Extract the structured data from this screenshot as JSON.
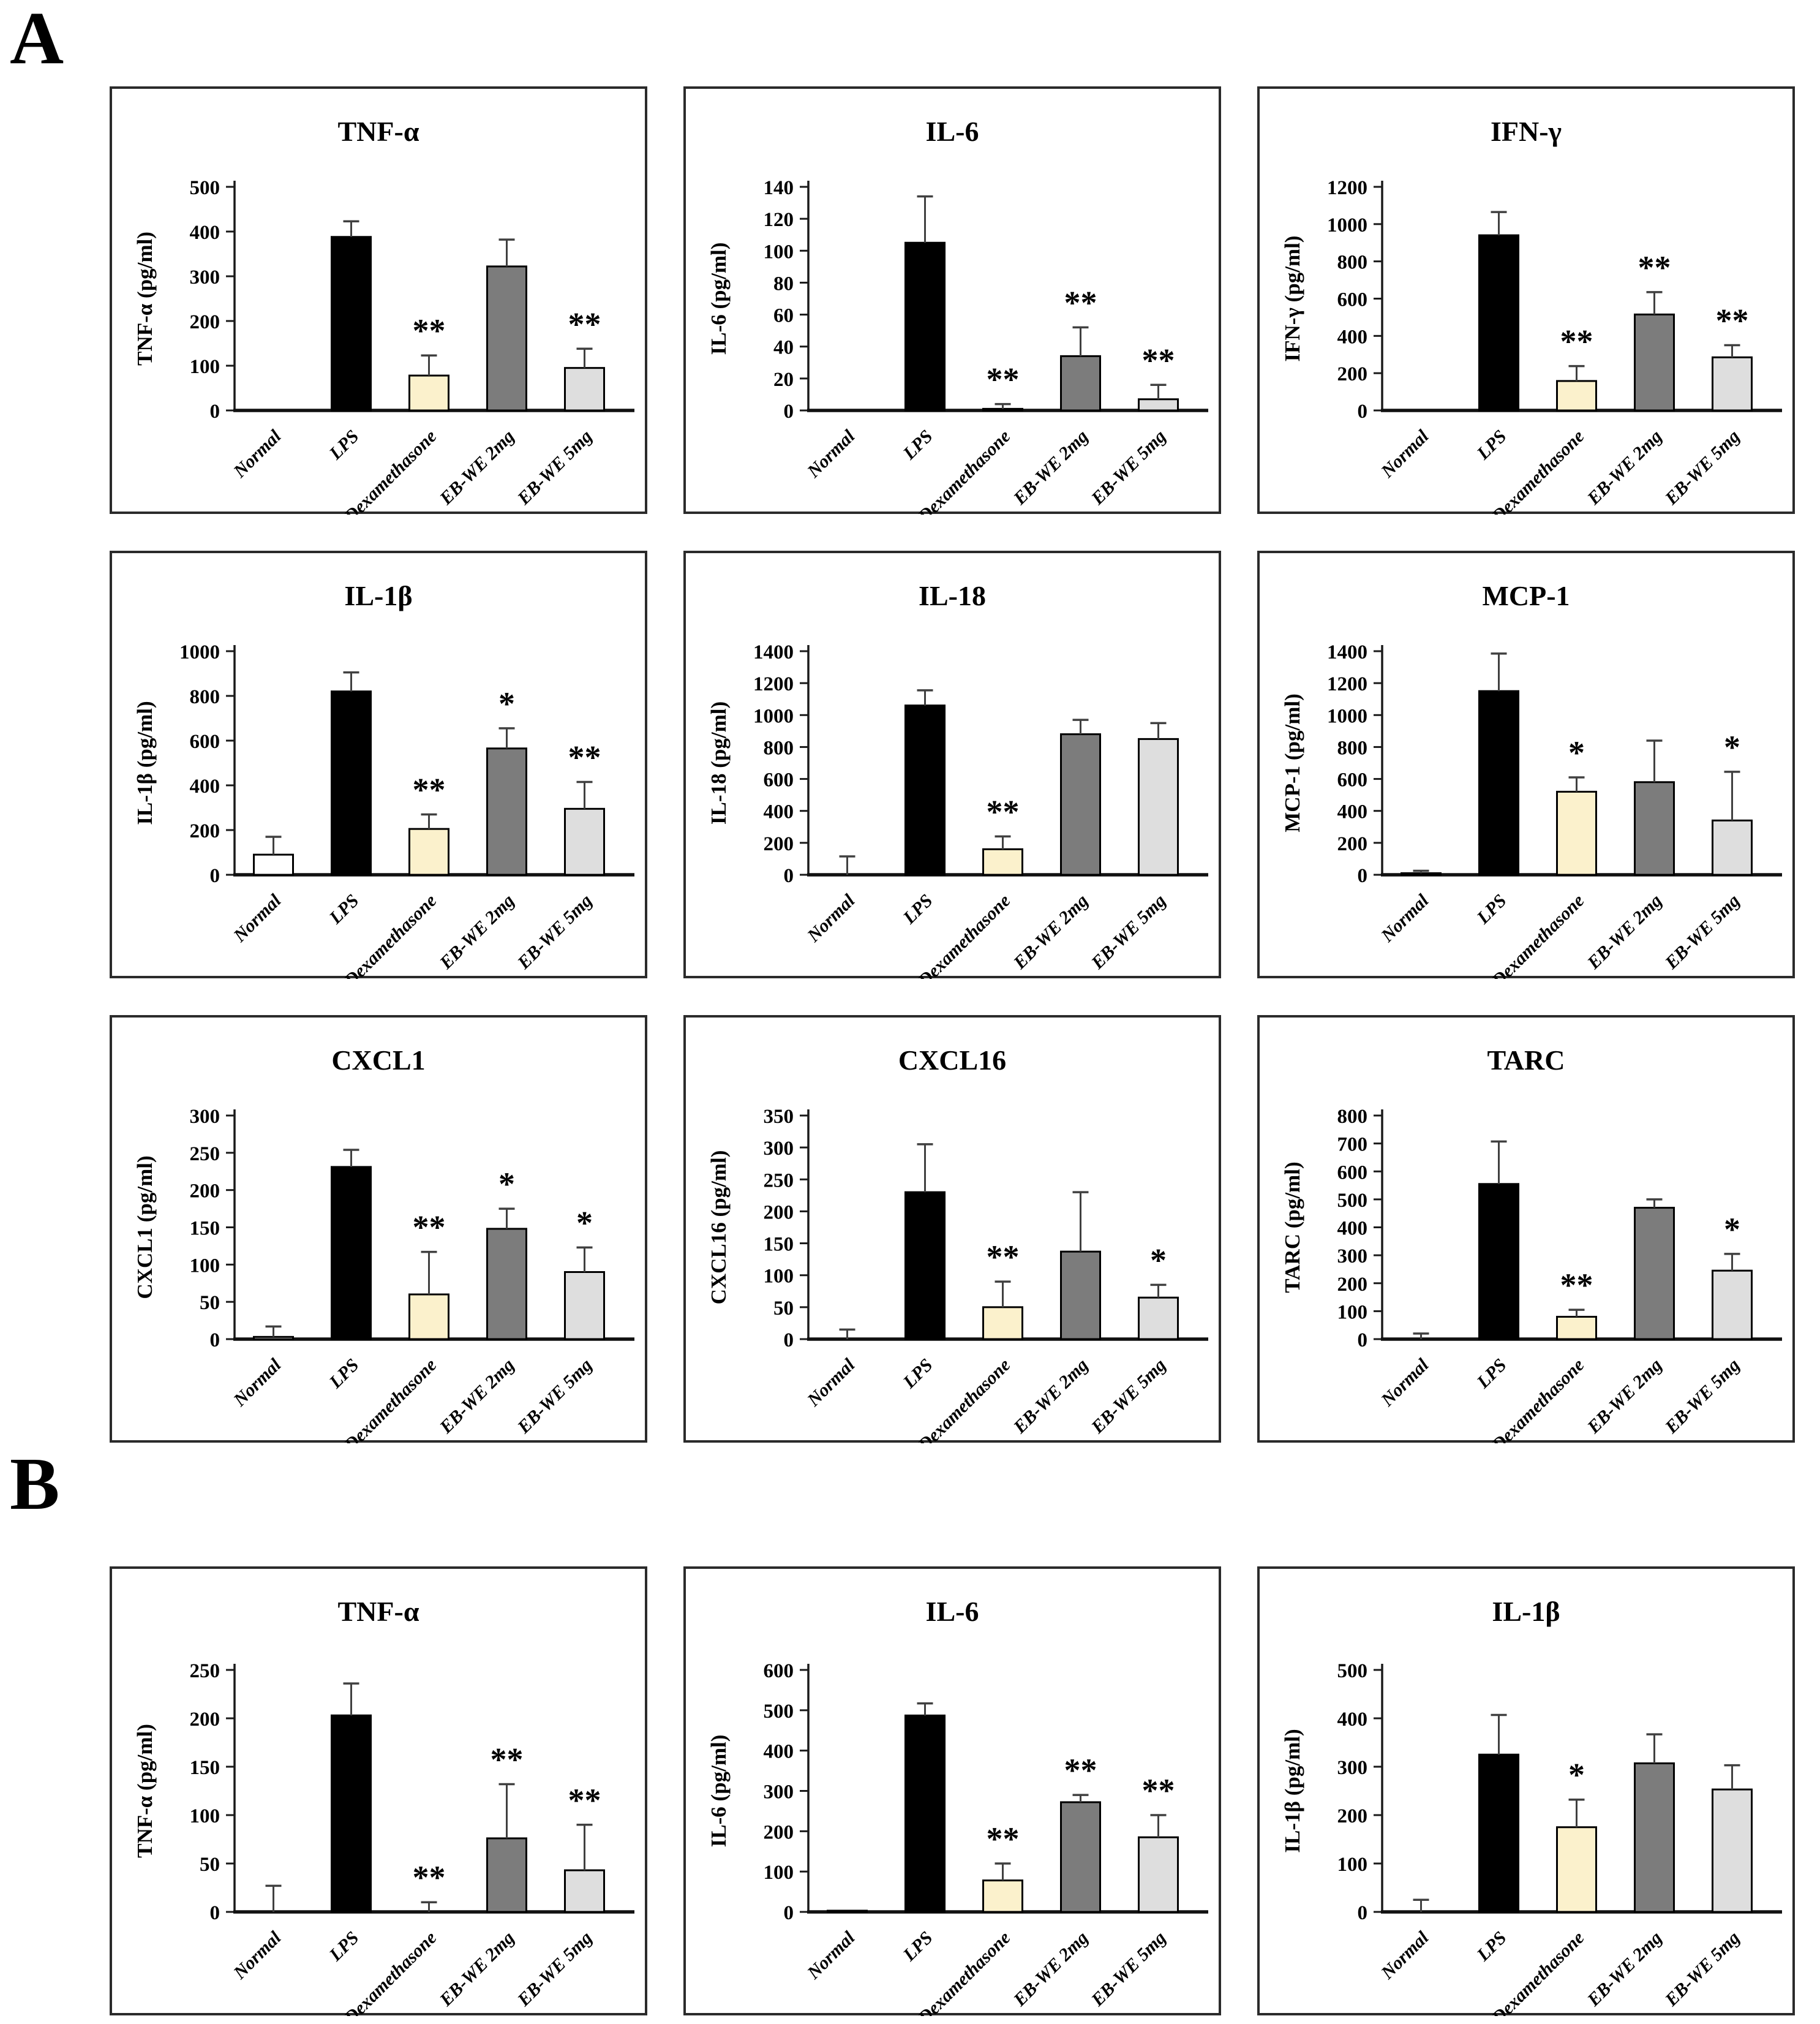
{
  "figure": {
    "section_a_label": "A",
    "section_b_label": "B"
  },
  "categories": [
    "Normal",
    "LPS",
    "Dexamethasone",
    "EB-WE 2mg",
    "EB-WE 5mg"
  ],
  "bar_colors": [
    "#FFFFFF",
    "#000000",
    "#FBF1CC",
    "#7C7C7C",
    "#DEDEDE"
  ],
  "error_bar_color": "#404040",
  "axis_color": "#1a1a1a",
  "panel_border_color": "#2b2b2b",
  "chart_data": [
    {
      "id": "a-tnf-alpha",
      "section": "A",
      "type": "bar",
      "title": "TNF-α",
      "ylabel": "TNF-α (pg/ml)",
      "ylim": [
        0,
        500
      ],
      "ystep": 100,
      "categories": [
        "Normal",
        "LPS",
        "Dexamethasone",
        "EB-WE 2mg",
        "EB-WE 5mg"
      ],
      "values": [
        0,
        388,
        78,
        322,
        95
      ],
      "errors_plus": [
        0,
        35,
        45,
        60,
        43
      ],
      "significance": [
        "",
        "",
        "**",
        "",
        "**"
      ]
    },
    {
      "id": "a-il6",
      "section": "A",
      "type": "bar",
      "title": "IL-6",
      "ylabel": "IL-6  (pg/ml)",
      "ylim": [
        0,
        140
      ],
      "ystep": 20,
      "categories": [
        "Normal",
        "LPS",
        "Dexamethasone",
        "EB-WE 2mg",
        "EB-WE 5mg"
      ],
      "values": [
        0,
        105,
        1,
        34,
        7
      ],
      "errors_plus": [
        0,
        29,
        3,
        18,
        9
      ],
      "significance": [
        "",
        "",
        "**",
        "**",
        "**"
      ]
    },
    {
      "id": "a-ifn-gamma",
      "section": "A",
      "type": "bar",
      "title": "IFN-γ",
      "ylabel": "IFN-γ (pg/ml)",
      "ylim": [
        0,
        1200
      ],
      "ystep": 200,
      "categories": [
        "Normal",
        "LPS",
        "Dexamethasone",
        "EB-WE 2mg",
        "EB-WE 5mg"
      ],
      "values": [
        0,
        940,
        158,
        515,
        285
      ],
      "errors_plus": [
        0,
        125,
        80,
        120,
        65
      ],
      "significance": [
        "",
        "",
        "**",
        "**",
        "**"
      ]
    },
    {
      "id": "a-il1-beta",
      "section": "A",
      "type": "bar",
      "title": "IL-1β",
      "ylabel": "IL-1β  (pg/ml)",
      "ylim": [
        0,
        1000
      ],
      "ystep": 200,
      "categories": [
        "Normal",
        "LPS",
        "Dexamethasone",
        "EB-WE 2mg",
        "EB-WE 5mg"
      ],
      "values": [
        90,
        820,
        205,
        565,
        295
      ],
      "errors_plus": [
        80,
        85,
        65,
        90,
        120
      ],
      "significance": [
        "",
        "",
        "**",
        "*",
        "**"
      ]
    },
    {
      "id": "a-il18",
      "section": "A",
      "type": "bar",
      "title": "IL-18",
      "ylabel": "IL-18  (pg/ml)",
      "ylim": [
        0,
        1400
      ],
      "ystep": 200,
      "categories": [
        "Normal",
        "LPS",
        "Dexamethasone",
        "EB-WE 2mg",
        "EB-WE 5mg"
      ],
      "values": [
        0,
        1060,
        160,
        880,
        850
      ],
      "errors_plus": [
        115,
        95,
        80,
        90,
        100
      ],
      "significance": [
        "",
        "",
        "**",
        "",
        ""
      ]
    },
    {
      "id": "a-mcp1",
      "section": "A",
      "type": "bar",
      "title": "MCP-1",
      "ylabel": "MCP-1 (pg/ml)",
      "ylim": [
        0,
        1400
      ],
      "ystep": 200,
      "categories": [
        "Normal",
        "LPS",
        "Dexamethasone",
        "EB-WE 2mg",
        "EB-WE 5mg"
      ],
      "values": [
        10,
        1150,
        520,
        580,
        340
      ],
      "errors_plus": [
        15,
        235,
        90,
        260,
        305
      ],
      "significance": [
        "",
        "",
        "*",
        "",
        "*"
      ]
    },
    {
      "id": "a-cxcl1",
      "section": "A",
      "type": "bar",
      "title": "CXCL1",
      "ylabel": "CXCL1 (pg/ml)",
      "ylim": [
        0,
        300
      ],
      "ystep": 50,
      "categories": [
        "Normal",
        "LPS",
        "Dexamethasone",
        "EB-WE 2mg",
        "EB-WE 5mg"
      ],
      "values": [
        3,
        231,
        60,
        148,
        90
      ],
      "errors_plus": [
        14,
        23,
        57,
        27,
        33
      ],
      "significance": [
        "",
        "",
        "**",
        "*",
        "*"
      ]
    },
    {
      "id": "a-cxcl16",
      "section": "A",
      "type": "bar",
      "title": "CXCL16",
      "ylabel": "CXCL16 (pg/ml)",
      "ylim": [
        0,
        350
      ],
      "ystep": 50,
      "categories": [
        "Normal",
        "LPS",
        "Dexamethasone",
        "EB-WE 2mg",
        "EB-WE 5mg"
      ],
      "values": [
        0,
        230,
        50,
        137,
        65
      ],
      "errors_plus": [
        15,
        75,
        40,
        93,
        20
      ],
      "significance": [
        "",
        "",
        "**",
        "",
        "*"
      ]
    },
    {
      "id": "a-tarc",
      "section": "A",
      "type": "bar",
      "title": "TARC",
      "ylabel": "TARC (pg/ml)",
      "ylim": [
        0,
        800
      ],
      "ystep": 100,
      "categories": [
        "Normal",
        "LPS",
        "Dexamethasone",
        "EB-WE 2mg",
        "EB-WE 5mg"
      ],
      "values": [
        0,
        555,
        80,
        470,
        245
      ],
      "errors_plus": [
        20,
        152,
        25,
        30,
        60
      ],
      "significance": [
        "",
        "",
        "**",
        "",
        "*"
      ]
    },
    {
      "id": "b-tnf-alpha",
      "section": "B",
      "type": "bar",
      "title": "TNF-α",
      "ylabel": "TNF-α (pg/ml)",
      "ylim": [
        0,
        250
      ],
      "ystep": 50,
      "categories": [
        "Normal",
        "LPS",
        "Dexamethasone",
        "EB-WE 2mg",
        "EB-WE 5mg"
      ],
      "values": [
        0,
        203,
        0,
        76,
        43
      ],
      "errors_plus": [
        27,
        33,
        10,
        56,
        47
      ],
      "significance": [
        "",
        "",
        "**",
        "**",
        "**"
      ]
    },
    {
      "id": "b-il6",
      "section": "B",
      "type": "bar",
      "title": "IL-6",
      "ylabel": "IL-6  (pg/ml)",
      "ylim": [
        0,
        600
      ],
      "ystep": 100,
      "categories": [
        "Normal",
        "LPS",
        "Dexamethasone",
        "EB-WE 2mg",
        "EB-WE 5mg"
      ],
      "values": [
        3,
        487,
        78,
        272,
        185
      ],
      "errors_plus": [
        0,
        30,
        42,
        18,
        55
      ],
      "significance": [
        "",
        "",
        "**",
        "**",
        "**"
      ]
    },
    {
      "id": "b-il1-beta",
      "section": "B",
      "type": "bar",
      "title": "IL-1β",
      "ylabel": "IL-1β  (pg/ml)",
      "ylim": [
        0,
        500
      ],
      "ystep": 100,
      "categories": [
        "Normal",
        "LPS",
        "Dexamethasone",
        "EB-WE 2mg",
        "EB-WE 5mg"
      ],
      "values": [
        0,
        325,
        175,
        307,
        253
      ],
      "errors_plus": [
        25,
        82,
        57,
        60,
        50
      ],
      "significance": [
        "",
        "",
        "*",
        "",
        ""
      ]
    }
  ]
}
